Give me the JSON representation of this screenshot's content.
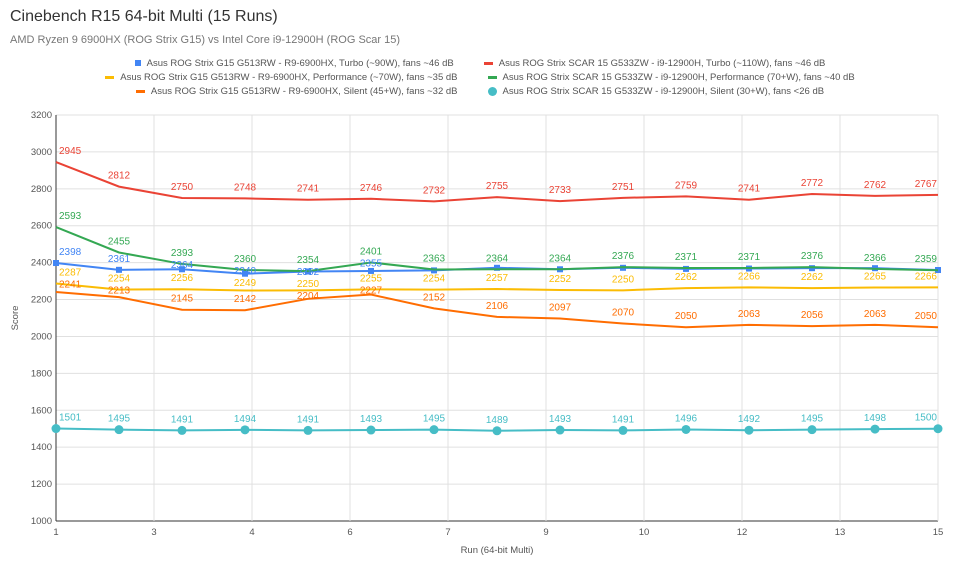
{
  "chart_data": {
    "type": "line",
    "title": "Cinebench R15 64-bit Multi (15 Runs)",
    "subtitle": "AMD Ryzen 9 6900HX (ROG Strix G15) vs Intel Core i9-12900H (ROG Scar 15)",
    "xlabel": "Run (64-bit Multi)",
    "ylabel": "Score",
    "ylim": [
      1000,
      3200
    ],
    "yticks": [
      1000,
      1200,
      1400,
      1600,
      1800,
      2000,
      2200,
      2400,
      2600,
      2800,
      3000,
      3200
    ],
    "xlim": [
      1,
      15
    ],
    "xtick_labels": [
      "1",
      "3",
      "4",
      "6",
      "7",
      "9",
      "10",
      "12",
      "13",
      "15"
    ],
    "x": [
      1,
      2,
      3,
      4,
      5,
      6,
      7,
      8,
      9,
      10,
      11,
      12,
      13,
      14,
      15
    ],
    "grid": true,
    "legend_placement": "top",
    "series": [
      {
        "name": "Asus ROG Strix G15 G513RW - R9-6900HX, Turbo (~90W), fans ~46 dB",
        "color": "#4285f4",
        "marker": "square",
        "values": [
          2398,
          2361,
          2364,
          2340,
          2352,
          2355,
          2358,
          2372,
          2364,
          2372,
          2366,
          2368,
          2370,
          2370,
          2360
        ],
        "labels_shown": [
          true,
          true,
          true,
          true,
          true,
          true,
          false,
          false,
          false,
          false,
          false,
          false,
          false,
          false,
          false
        ]
      },
      {
        "name": "Asus ROG Strix SCAR 15 G533ZW - i9-12900H, Turbo (~110W), fans ~46 dB",
        "color": "#ea4335",
        "marker": "none",
        "values": [
          2945,
          2812,
          2750,
          2748,
          2741,
          2746,
          2732,
          2755,
          2733,
          2751,
          2759,
          2741,
          2772,
          2762,
          2767
        ]
      },
      {
        "name": "Asus ROG Strix G15 G513RW - R9-6900HX, Performance (~70W), fans ~35 dB",
        "color": "#fbbc04",
        "marker": "none",
        "values": [
          2287,
          2254,
          2256,
          2249,
          2250,
          2255,
          2254,
          2257,
          2252,
          2250,
          2262,
          2266,
          2262,
          2265,
          2266
        ]
      },
      {
        "name": "Asus ROG Strix SCAR 15 G533ZW - i9-12900H, Performance (70+W), fans ~40 dB",
        "color": "#34a853",
        "marker": "none",
        "values": [
          2593,
          2455,
          2393,
          2360,
          2354,
          2401,
          2363,
          2364,
          2364,
          2376,
          2371,
          2371,
          2376,
          2366,
          2359
        ]
      },
      {
        "name": "Asus ROG Strix G15 G513RW - R9-6900HX, Silent (45+W), fans ~32 dB",
        "color": "#ff6d01",
        "marker": "none",
        "values": [
          2241,
          2213,
          2145,
          2142,
          2204,
          2227,
          2152,
          2106,
          2097,
          2070,
          2050,
          2063,
          2056,
          2063,
          2050
        ]
      },
      {
        "name": "Asus ROG Strix SCAR 15 G533ZW - i9-12900H, Silent (30+W), fans <26 dB",
        "color": "#46bdc6",
        "marker": "circle",
        "values": [
          1501,
          1495,
          1491,
          1494,
          1491,
          1493,
          1495,
          1489,
          1493,
          1491,
          1496,
          1492,
          1495,
          1498,
          1500
        ]
      }
    ]
  }
}
